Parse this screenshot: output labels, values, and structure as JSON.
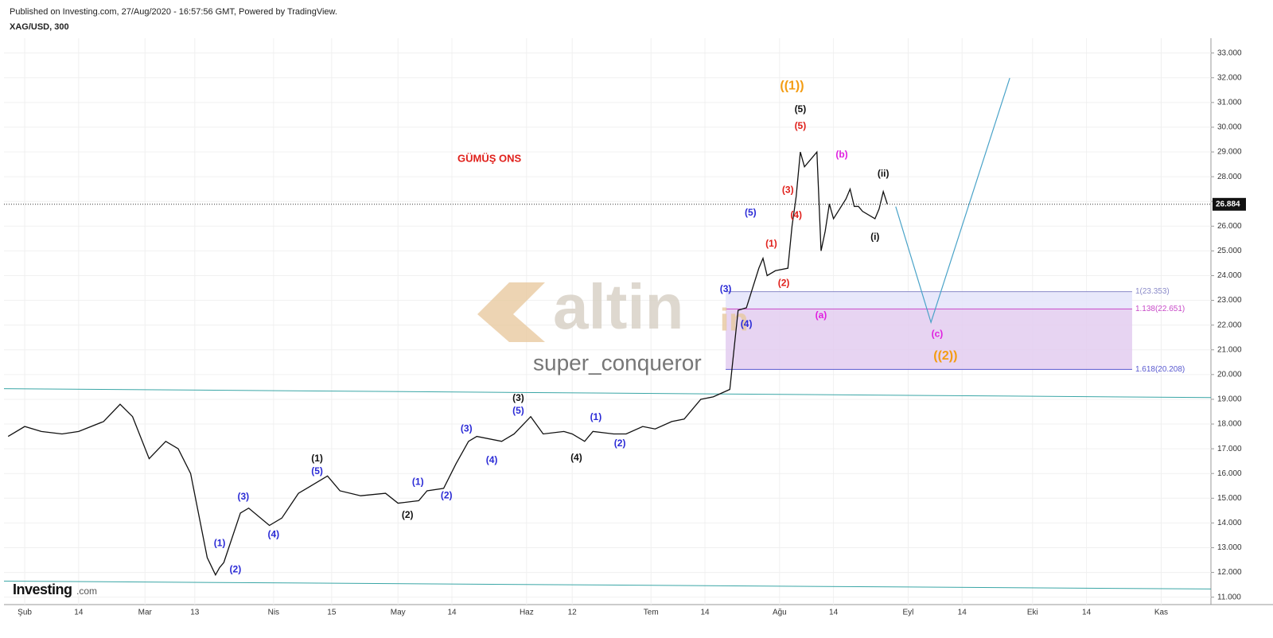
{
  "header": {
    "published": "Published on Investing.com, 27/Aug/2020 - 16:57:56 GMT, Powered by TradingView.",
    "symbol": "XAG/USD, 300"
  },
  "chart_data": {
    "type": "line",
    "title": "GÜMÜŞ ONS",
    "title_color": "#e0201b",
    "watermark": "altin",
    "watermark_suffix": "in",
    "watermark_user": "super_conqueror",
    "logo": "Investing",
    "logo_suffix": ".com",
    "xlim": [
      27,
      318
    ],
    "xticks": [
      {
        "value": 32,
        "label": "Şub"
      },
      {
        "value": 45,
        "label": "14"
      },
      {
        "value": 61,
        "label": "Mar"
      },
      {
        "value": 73,
        "label": "13"
      },
      {
        "value": 92,
        "label": "Nis"
      },
      {
        "value": 106,
        "label": "15"
      },
      {
        "value": 122,
        "label": "May"
      },
      {
        "value": 135,
        "label": "14"
      },
      {
        "value": 153,
        "label": "Haz"
      },
      {
        "value": 164,
        "label": "12"
      },
      {
        "value": 183,
        "label": "Tem"
      },
      {
        "value": 196,
        "label": "14"
      },
      {
        "value": 214,
        "label": "Ağu"
      },
      {
        "value": 227,
        "label": "14"
      },
      {
        "value": 245,
        "label": "Eyl"
      },
      {
        "value": 258,
        "label": "14"
      },
      {
        "value": 275,
        "label": "Eki"
      },
      {
        "value": 288,
        "label": "14"
      },
      {
        "value": 306,
        "label": "Kas"
      }
    ],
    "ylim": [
      10.7,
      33.6
    ],
    "yticks": [
      {
        "value": 11,
        "label": "11.000"
      },
      {
        "value": 12,
        "label": "12.000"
      },
      {
        "value": 13,
        "label": "13.000"
      },
      {
        "value": 14,
        "label": "14.000"
      },
      {
        "value": 15,
        "label": "15.000"
      },
      {
        "value": 16,
        "label": "16.000"
      },
      {
        "value": 17,
        "label": "17.000"
      },
      {
        "value": 18,
        "label": "18.000"
      },
      {
        "value": 19,
        "label": "19.000"
      },
      {
        "value": 20,
        "label": "20.000"
      },
      {
        "value": 21,
        "label": "21.000"
      },
      {
        "value": 22,
        "label": "22.000"
      },
      {
        "value": 23,
        "label": "23.000"
      },
      {
        "value": 24,
        "label": "24.000"
      },
      {
        "value": 25,
        "label": "25.000"
      },
      {
        "value": 26,
        "label": "26.000"
      },
      {
        "value": 27,
        "label": "27.000"
      },
      {
        "value": 28,
        "label": "28.000"
      },
      {
        "value": 29,
        "label": "29.000"
      },
      {
        "value": 30,
        "label": "30.000"
      },
      {
        "value": 31,
        "label": "31.000"
      },
      {
        "value": 32,
        "label": "32.000"
      },
      {
        "value": 33,
        "label": "33.000"
      }
    ],
    "grid": true,
    "x": [
      28,
      32,
      36,
      41,
      45,
      51,
      55,
      58,
      62,
      66,
      69,
      72,
      76,
      78,
      79,
      80,
      84,
      86,
      91,
      94,
      98,
      101,
      105,
      108,
      113,
      119,
      122,
      127,
      129,
      133,
      136,
      139,
      141,
      147,
      150,
      154,
      157,
      162,
      164,
      167,
      169,
      174,
      177,
      181,
      184,
      188,
      191,
      195,
      198,
      202,
      203,
      204,
      206,
      209,
      210,
      211,
      213,
      216,
      217,
      218,
      219,
      220,
      223,
      224,
      225,
      226,
      227,
      230,
      231,
      232,
      233,
      234,
      237,
      238,
      239,
      240
    ],
    "series": [
      {
        "name": "XAG/USD",
        "color": "#111111",
        "values": [
          17.5,
          17.9,
          17.7,
          17.6,
          17.7,
          18.1,
          18.8,
          18.3,
          16.6,
          17.3,
          17.0,
          16.0,
          12.6,
          11.9,
          12.2,
          12.4,
          14.4,
          14.6,
          13.9,
          14.2,
          15.2,
          15.5,
          15.9,
          15.3,
          15.1,
          15.2,
          14.8,
          14.9,
          15.3,
          15.4,
          16.4,
          17.3,
          17.5,
          17.3,
          17.6,
          18.3,
          17.6,
          17.7,
          17.6,
          17.3,
          17.7,
          17.6,
          17.6,
          17.9,
          17.8,
          18.1,
          18.2,
          19.0,
          19.1,
          19.4,
          21.0,
          22.6,
          22.7,
          24.3,
          24.7,
          24.0,
          24.2,
          24.3,
          26.0,
          27.2,
          29.0,
          28.4,
          29.0,
          25.0,
          25.8,
          26.9,
          26.3,
          27.1,
          27.5,
          26.8,
          26.8,
          26.6,
          26.3,
          26.7,
          27.4,
          26.88
        ]
      }
    ],
    "last_price": 26.884,
    "last_price_label": "26.884",
    "channels": [
      {
        "color": "#3aa6a6",
        "x": [
          27,
          318
        ],
        "values": [
          19.43,
          19.07
        ]
      },
      {
        "color": "#3aa6a6",
        "x": [
          27,
          318
        ],
        "values": [
          11.65,
          11.33
        ]
      }
    ],
    "projection": {
      "color": "#4aa3c8",
      "x": [
        242,
        250.5,
        269.5
      ],
      "values": [
        26.79,
        22.11,
        31.99
      ]
    },
    "fib": {
      "x": [
        201,
        299
      ],
      "levels": [
        {
          "value": 23.353,
          "label": "1(23.353)",
          "color": "#8a8ac8"
        },
        {
          "value": 22.651,
          "label": "1.138(22.651)",
          "color": "#c84ac8"
        },
        {
          "value": 20.208,
          "label": "1.618(20.208)",
          "color": "#5a5ad0"
        }
      ],
      "fills": [
        "#e4e4fa",
        "#e3cdf0"
      ]
    },
    "wave_labels": [
      {
        "text": "((1))",
        "x": 217,
        "y": 31.66,
        "color": "#f39c12"
      },
      {
        "text": "(5)",
        "x": 219,
        "y": 30.71,
        "color": "#111111"
      },
      {
        "text": "(5)",
        "x": 219,
        "y": 30.03,
        "color": "#e0201b"
      },
      {
        "text": "(3)",
        "x": 216,
        "y": 27.44,
        "color": "#e0201b"
      },
      {
        "text": "(4)",
        "x": 218,
        "y": 26.43,
        "color": "#e0201b"
      },
      {
        "text": "(1)",
        "x": 212,
        "y": 25.28,
        "color": "#e0201b"
      },
      {
        "text": "(2)",
        "x": 215,
        "y": 23.68,
        "color": "#e0201b"
      },
      {
        "text": "(5)",
        "x": 207,
        "y": 26.53,
        "color": "#2b2bd6"
      },
      {
        "text": "(3)",
        "x": 201,
        "y": 23.45,
        "color": "#2b2bd6"
      },
      {
        "text": "(4)",
        "x": 206,
        "y": 22.02,
        "color": "#2b2bd6"
      },
      {
        "text": "(b)",
        "x": 229,
        "y": 28.88,
        "color": "#e020e0"
      },
      {
        "text": "(ii)",
        "x": 239,
        "y": 28.1,
        "color": "#111111"
      },
      {
        "text": "(i)",
        "x": 237,
        "y": 25.55,
        "color": "#111111"
      },
      {
        "text": "(a)",
        "x": 224,
        "y": 22.38,
        "color": "#e020e0"
      },
      {
        "text": "(c)",
        "x": 252,
        "y": 21.62,
        "color": "#e020e0"
      },
      {
        "text": "((2))",
        "x": 254,
        "y": 20.74,
        "color": "#f39c12"
      },
      {
        "text": "(3)",
        "x": 151,
        "y": 19.04,
        "color": "#111111"
      },
      {
        "text": "(5)",
        "x": 151,
        "y": 18.52,
        "color": "#2b2bd6"
      },
      {
        "text": "(3)",
        "x": 138.5,
        "y": 17.8,
        "color": "#2b2bd6"
      },
      {
        "text": "(4)",
        "x": 144.6,
        "y": 16.52,
        "color": "#2b2bd6"
      },
      {
        "text": "(1)",
        "x": 169.7,
        "y": 18.26,
        "color": "#2b2bd6"
      },
      {
        "text": "(2)",
        "x": 175.5,
        "y": 17.21,
        "color": "#2b2bd6"
      },
      {
        "text": "(4)",
        "x": 165,
        "y": 16.62,
        "color": "#111111"
      },
      {
        "text": "(1)",
        "x": 102.5,
        "y": 16.59,
        "color": "#111111"
      },
      {
        "text": "(5)",
        "x": 102.5,
        "y": 16.07,
        "color": "#2b2bd6"
      },
      {
        "text": "(1)",
        "x": 126.8,
        "y": 15.64,
        "color": "#2b2bd6"
      },
      {
        "text": "(2)",
        "x": 133.7,
        "y": 15.09,
        "color": "#2b2bd6"
      },
      {
        "text": "(2)",
        "x": 124.3,
        "y": 14.3,
        "color": "#111111"
      },
      {
        "text": "(3)",
        "x": 84.7,
        "y": 15.05,
        "color": "#2b2bd6"
      },
      {
        "text": "(4)",
        "x": 92,
        "y": 13.52,
        "color": "#2b2bd6"
      },
      {
        "text": "(1)",
        "x": 79,
        "y": 13.16,
        "color": "#2b2bd6"
      },
      {
        "text": "(2)",
        "x": 82.8,
        "y": 12.11,
        "color": "#2b2bd6"
      }
    ]
  }
}
